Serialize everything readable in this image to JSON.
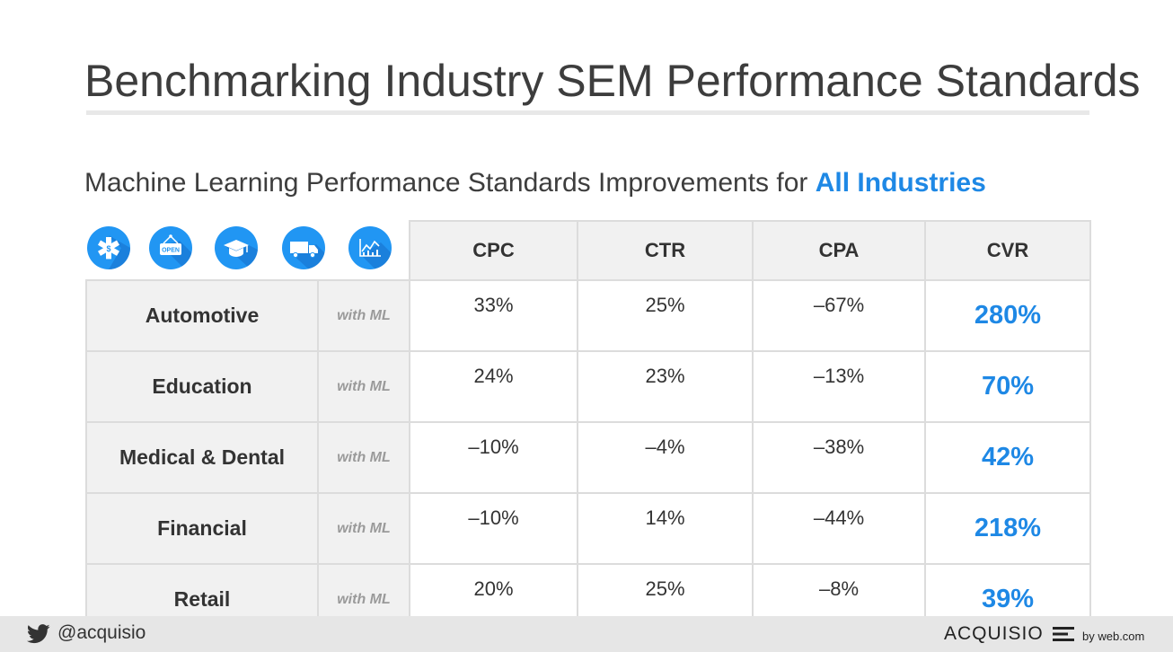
{
  "header": {
    "title": "Benchmarking Industry SEM Performance Standards",
    "subtitle_prefix": "Machine Learning Performance Standards Improvements for ",
    "subtitle_highlight": "All Industries"
  },
  "icons": [
    "medical-icon",
    "open-sign-icon",
    "graduation-cap-icon",
    "truck-icon",
    "finance-chart-icon"
  ],
  "table": {
    "columns": [
      "CPC",
      "CTR",
      "CPA",
      "CVR"
    ],
    "rows": [
      {
        "industry": "Automotive",
        "tag": "with ML",
        "cpc": "33%",
        "ctr": "25%",
        "cpa": "–67%",
        "cvr": "280%"
      },
      {
        "industry": "Education",
        "tag": "with ML",
        "cpc": "24%",
        "ctr": "23%",
        "cpa": "–13%",
        "cvr": "70%"
      },
      {
        "industry": "Medical & Dental",
        "tag": "with ML",
        "cpc": "–10%",
        "ctr": "–4%",
        "cpa": "–38%",
        "cvr": "42%"
      },
      {
        "industry": "Financial",
        "tag": "with ML",
        "cpc": "–10%",
        "ctr": "14%",
        "cpa": "–44%",
        "cvr": "218%"
      },
      {
        "industry": "Retail",
        "tag": "with ML",
        "cpc": "20%",
        "ctr": "25%",
        "cpa": "–8%",
        "cvr": "39%"
      }
    ]
  },
  "footer": {
    "handle": "@acquisio",
    "brand": "ACQUISIO",
    "by": "by web.com"
  },
  "colors": {
    "accent": "#1e88e5",
    "icon_bg": "#2196f3",
    "cell_bg": "#f1f1f1",
    "footer_bg": "#e6e6e6"
  }
}
